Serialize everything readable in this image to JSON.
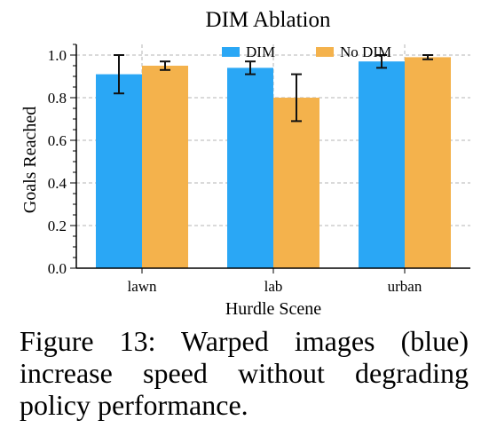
{
  "chart_data": {
    "type": "bar",
    "title": "DIM Ablation",
    "xlabel": "Hurdle Scene",
    "ylabel": "Goals Reached",
    "categories": [
      "lawn",
      "lab",
      "urban"
    ],
    "series": [
      {
        "name": "DIM",
        "values": [
          0.91,
          0.94,
          0.97
        ],
        "errors": [
          0.09,
          0.03,
          0.03
        ],
        "color": "#2aa7f5"
      },
      {
        "name": "No DIM",
        "values": [
          0.95,
          0.8,
          0.99
        ],
        "errors": [
          0.02,
          0.11,
          0.01
        ],
        "color": "#f4b24c"
      }
    ],
    "ylim": [
      0,
      1.05
    ],
    "yticks": [
      "0.0",
      "0.2",
      "0.4",
      "0.6",
      "0.8",
      "1.0"
    ],
    "ytick_values": [
      0,
      0.2,
      0.4,
      0.6,
      0.8,
      1.0
    ],
    "grid": true,
    "legend_position": "top"
  },
  "caption": "Figure 13: Warped images (blue) increase speed without degrading policy performance."
}
